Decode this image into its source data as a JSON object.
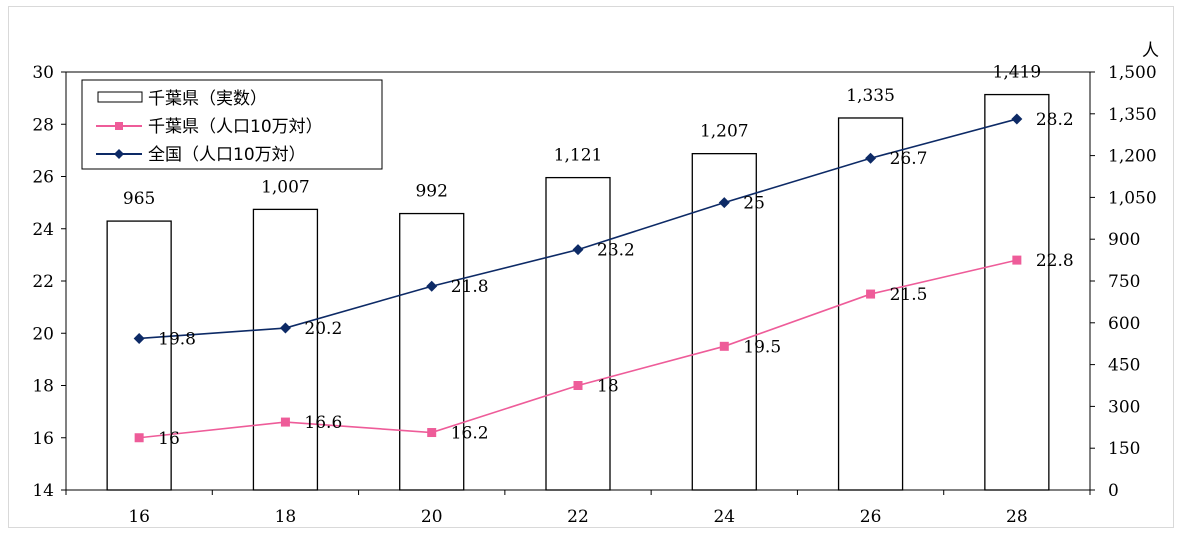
{
  "chart_data": {
    "type": "bar",
    "title": "",
    "xlabel": "",
    "ylabel": "",
    "y2label": "人",
    "categories": [
      "16",
      "18",
      "20",
      "22",
      "24",
      "26",
      "28"
    ],
    "ylim": [
      14,
      30
    ],
    "y_ticks": [
      "14",
      "16",
      "18",
      "20",
      "22",
      "24",
      "26",
      "28",
      "30"
    ],
    "y2lim": [
      0,
      1500
    ],
    "y2_ticks": [
      "0",
      "150",
      "300",
      "450",
      "600",
      "750",
      "900",
      "1,050",
      "1,200",
      "1,350",
      "1,500"
    ],
    "legend_position": "top-left",
    "grid": false,
    "series": [
      {
        "name": "千葉県（実数）",
        "kind": "bar",
        "axis": "right",
        "values": [
          965,
          1007,
          992,
          1121,
          1207,
          1335,
          1419
        ],
        "labels": [
          "965",
          "1,007",
          "992",
          "1,121",
          "1,207",
          "1,335",
          "1,419"
        ],
        "color": "#000000"
      },
      {
        "name": "千葉県（人口10万対）",
        "kind": "line",
        "axis": "left",
        "marker": "square",
        "values": [
          16,
          16.6,
          16.2,
          18,
          19.5,
          21.5,
          22.8
        ],
        "labels": [
          "16",
          "16.6",
          "16.2",
          "18",
          "19.5",
          "21.5",
          "22.8"
        ],
        "color": "#ee5c99"
      },
      {
        "name": "全国（人口10万対）",
        "kind": "line",
        "axis": "left",
        "marker": "diamond",
        "values": [
          19.8,
          20.2,
          21.8,
          23.2,
          25,
          26.7,
          28.2
        ],
        "labels": [
          "19.8",
          "20.2",
          "21.8",
          "23.2",
          "25",
          "26.7",
          "28.2"
        ],
        "color": "#0d2a66"
      }
    ]
  }
}
